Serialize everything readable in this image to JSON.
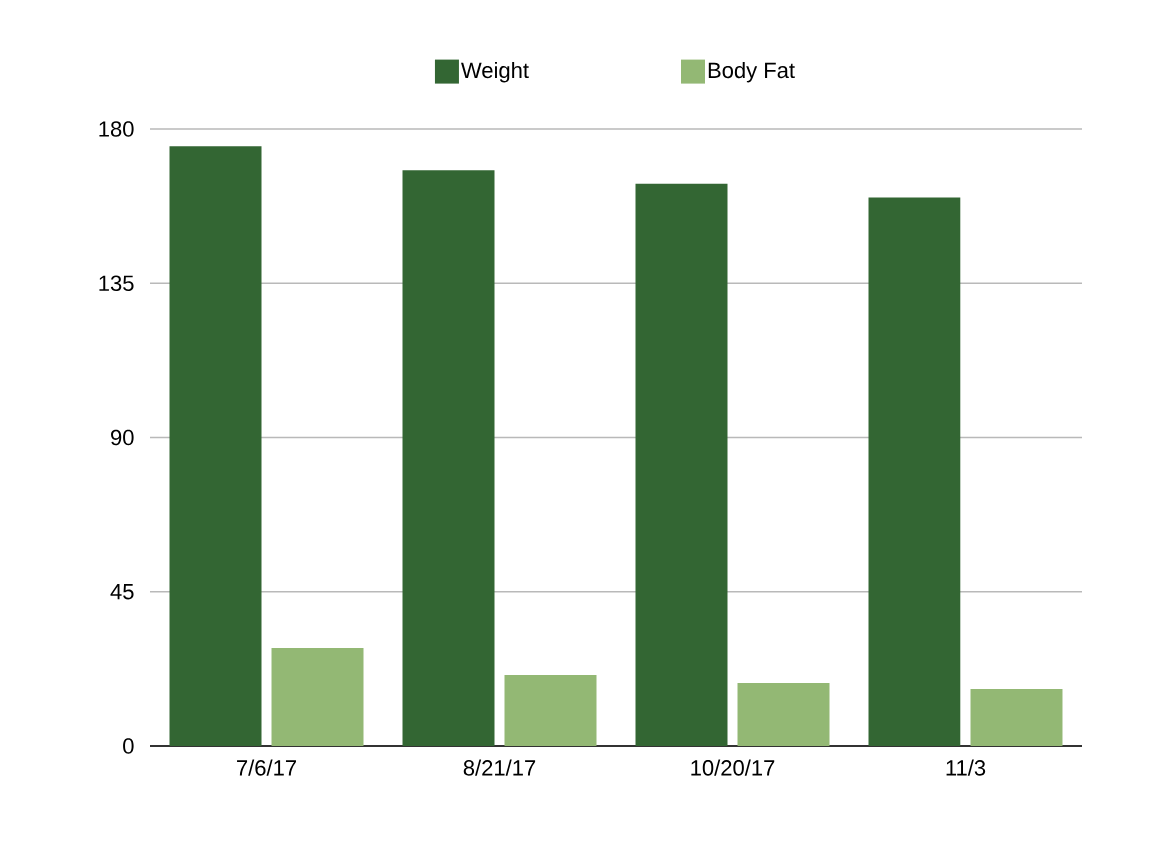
{
  "chart_data": {
    "type": "bar",
    "categories": [
      "7/6/17",
      "8/21/17",
      "10/20/17",
      "11/3"
    ],
    "series": [
      {
        "name": "Weight",
        "color": "#336633",
        "values": [
          175,
          168,
          164,
          160
        ]
      },
      {
        "name": "Body Fat",
        "color": "#93b874",
        "values": [
          28.6,
          20.7,
          18.4,
          16.6
        ]
      }
    ],
    "ylim": [
      0,
      180
    ],
    "yticks": [
      0,
      45,
      90,
      135,
      180
    ],
    "grid": "y",
    "legend": "top"
  }
}
